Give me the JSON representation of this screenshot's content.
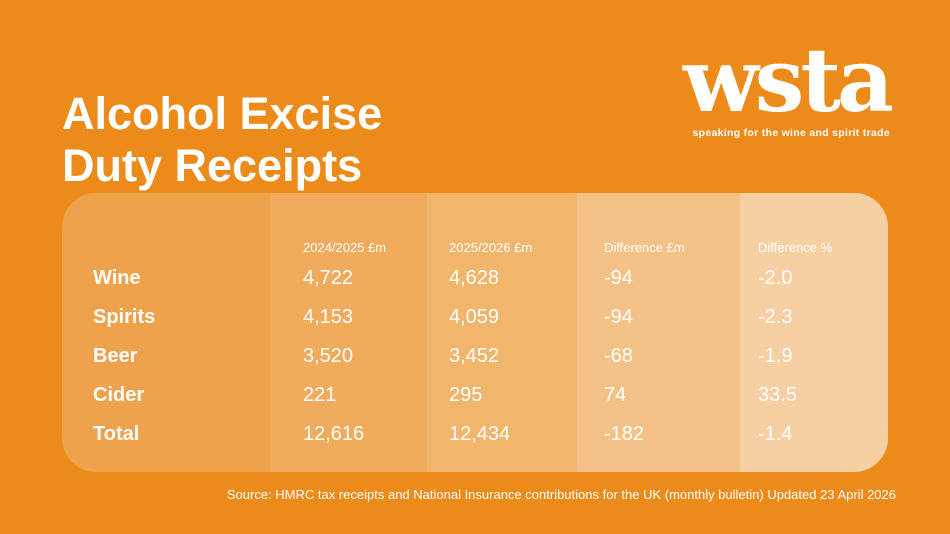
{
  "page": {
    "title_line1": "Alcohol Excise",
    "title_line2": "Duty Receipts"
  },
  "brand": {
    "logo_text": "wsta",
    "tagline": "speaking for the wine and spirit trade"
  },
  "chart_data": {
    "type": "table",
    "title": "Alcohol Excise Duty Receipts",
    "columns": [
      "",
      "2024/2025 £m",
      "2025/2026 £m",
      "Difference £m",
      "Difference %"
    ],
    "rows": [
      {
        "label": "Wine",
        "values": [
          "4,722",
          "4,628",
          "-94",
          "-2.0"
        ]
      },
      {
        "label": "Spirits",
        "values": [
          "4,153",
          "4,059",
          "-94",
          "-2.3"
        ]
      },
      {
        "label": "Beer",
        "values": [
          "3,520",
          "3,452",
          "-68",
          "-1.9"
        ]
      },
      {
        "label": "Cider",
        "values": [
          "221",
          "295",
          "74",
          "33.5"
        ]
      },
      {
        "label": "Total",
        "values": [
          "12,616",
          "12,434",
          "-182",
          "-1.4"
        ]
      }
    ],
    "layout": {
      "header_position": "top",
      "column_shading": "bands lighten left to right",
      "grid": "off"
    }
  },
  "footer": {
    "source": "Source: HMRC tax receipts and National Insurance contributions for the UK (monthly bulletin) Updated 23 April 2026"
  },
  "colors": {
    "background": "#EC8B1A",
    "column_shades": [
      "#EEA24B",
      "#F0AC5C",
      "#F2B56C",
      "#F4C286",
      "#F6D0A2"
    ],
    "text": "#FFFFFF"
  }
}
